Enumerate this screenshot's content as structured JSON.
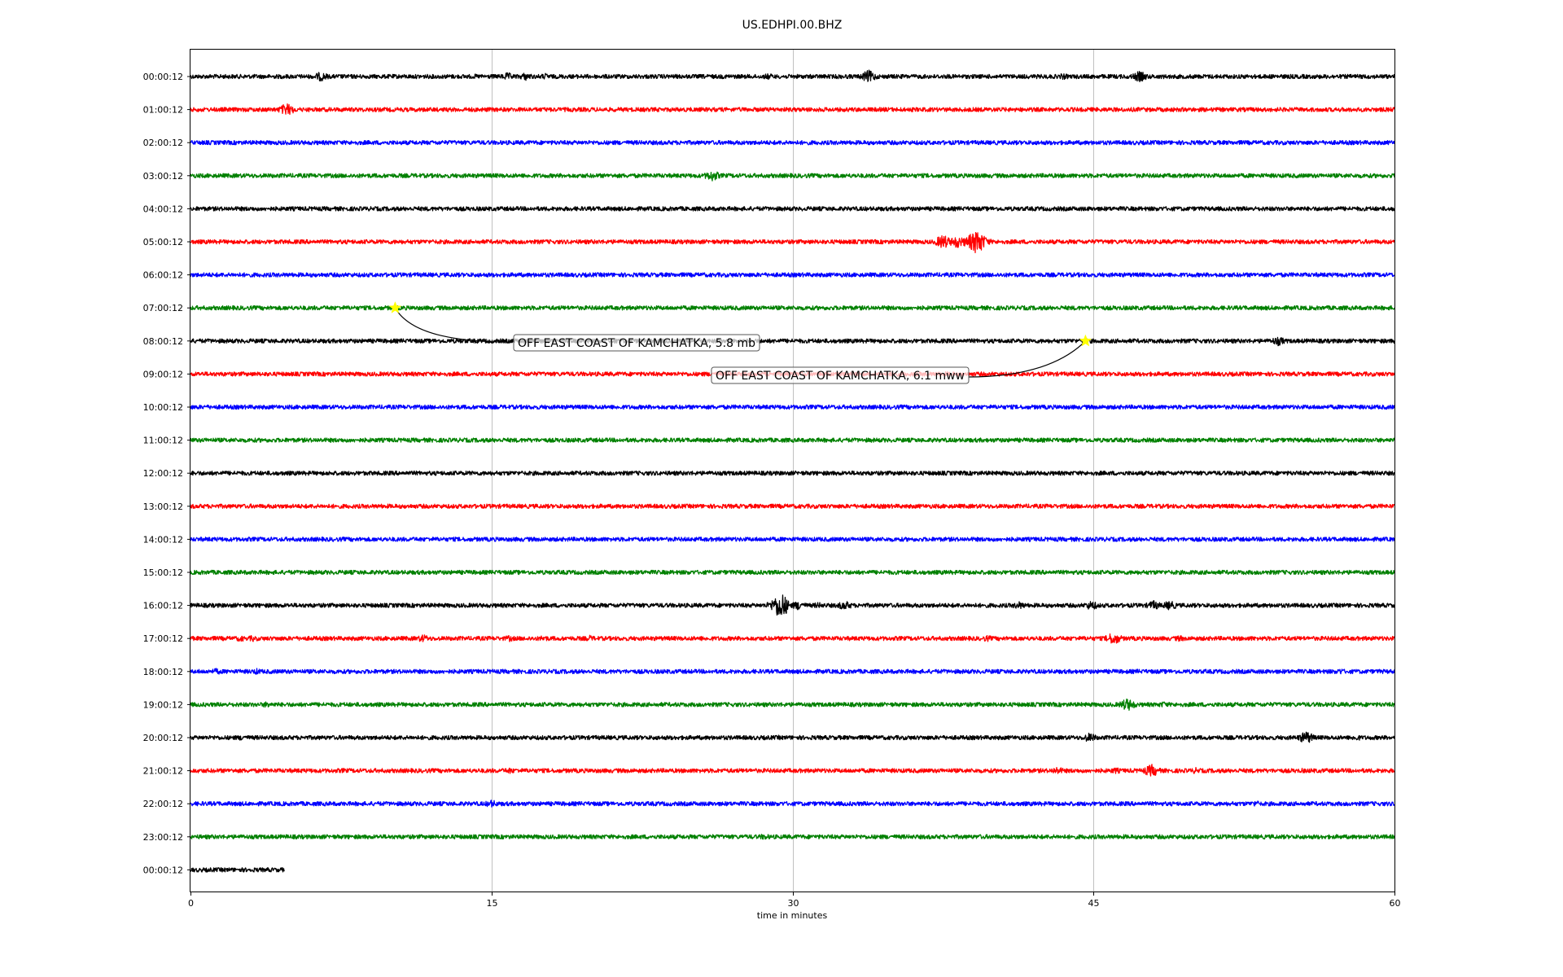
{
  "chart_data": {
    "type": "line",
    "title": "US.EDHPI.00.BHZ",
    "xlabel": "time in minutes",
    "ylabel": "",
    "xlim": [
      0,
      60
    ],
    "x_ticks": [
      0,
      15,
      30,
      45,
      60
    ],
    "grid": "vertical",
    "trace_colors": [
      "#000000",
      "#ff0000",
      "#0000ff",
      "#008000"
    ],
    "rows": [
      {
        "label": "00:00:12",
        "end_minute": 60,
        "bursts": [
          [
            2.7,
            2
          ],
          [
            6.5,
            6
          ],
          [
            14.2,
            3
          ],
          [
            15.8,
            5
          ],
          [
            16.7,
            5
          ],
          [
            17.7,
            4
          ],
          [
            20.8,
            3
          ],
          [
            26.8,
            3
          ],
          [
            28.8,
            4
          ],
          [
            32.3,
            3
          ],
          [
            33.8,
            8
          ],
          [
            37.8,
            3
          ],
          [
            43.5,
            4
          ],
          [
            47.3,
            7
          ],
          [
            53.8,
            2
          ]
        ]
      },
      {
        "label": "01:00:12",
        "end_minute": 60,
        "bursts": [
          [
            4.8,
            8
          ]
        ]
      },
      {
        "label": "02:00:12",
        "end_minute": 60,
        "bursts": [
          [
            54.3,
            2
          ]
        ]
      },
      {
        "label": "03:00:12",
        "end_minute": 60,
        "bursts": [
          [
            12.8,
            2
          ],
          [
            26.0,
            7
          ]
        ]
      },
      {
        "label": "04:00:12",
        "end_minute": 60,
        "bursts": [
          [
            18.1,
            2
          ]
        ]
      },
      {
        "label": "05:00:12",
        "end_minute": 60,
        "bursts": [
          [
            37.5,
            9
          ],
          [
            38.2,
            8
          ],
          [
            38.9,
            10
          ],
          [
            39.2,
            16
          ],
          [
            39.5,
            7
          ]
        ]
      },
      {
        "label": "06:00:12",
        "end_minute": 60,
        "bursts": [
          [
            5.0,
            2
          ]
        ]
      },
      {
        "label": "07:00:12",
        "end_minute": 60,
        "bursts": [
          [
            20.6,
            3
          ],
          [
            57.0,
            3
          ]
        ]
      },
      {
        "label": "08:00:12",
        "end_minute": 60,
        "bursts": [
          [
            54.2,
            6
          ]
        ]
      },
      {
        "label": "09:00:12",
        "end_minute": 60,
        "bursts": []
      },
      {
        "label": "10:00:12",
        "end_minute": 60,
        "bursts": []
      },
      {
        "label": "11:00:12",
        "end_minute": 60,
        "bursts": []
      },
      {
        "label": "12:00:12",
        "end_minute": 60,
        "bursts": []
      },
      {
        "label": "13:00:12",
        "end_minute": 60,
        "bursts": [
          [
            44.9,
            3
          ]
        ]
      },
      {
        "label": "14:00:12",
        "end_minute": 60,
        "bursts": []
      },
      {
        "label": "15:00:12",
        "end_minute": 60,
        "bursts": []
      },
      {
        "label": "16:00:12",
        "end_minute": 60,
        "bursts": [
          [
            29.0,
            6
          ],
          [
            29.4,
            17
          ],
          [
            30.3,
            6
          ],
          [
            31.3,
            4
          ],
          [
            32.6,
            6
          ],
          [
            41.3,
            5
          ],
          [
            44.9,
            6
          ],
          [
            48.0,
            6
          ],
          [
            48.8,
            6
          ]
        ]
      },
      {
        "label": "17:00:12",
        "end_minute": 60,
        "bursts": [
          [
            2.5,
            4
          ],
          [
            3.1,
            4
          ],
          [
            4.4,
            3
          ],
          [
            11.6,
            5
          ],
          [
            15.9,
            4
          ],
          [
            16.9,
            3
          ],
          [
            17.6,
            4
          ],
          [
            19.9,
            4
          ],
          [
            25.5,
            3
          ],
          [
            39.7,
            4
          ],
          [
            44.6,
            3
          ],
          [
            46.0,
            8
          ],
          [
            49.3,
            4
          ],
          [
            52.9,
            3
          ]
        ]
      },
      {
        "label": "18:00:12",
        "end_minute": 60,
        "bursts": [
          [
            1.3,
            4
          ],
          [
            3.3,
            4
          ],
          [
            47.2,
            3
          ],
          [
            57.3,
            4
          ]
        ]
      },
      {
        "label": "19:00:12",
        "end_minute": 60,
        "bursts": [
          [
            3.8,
            4
          ],
          [
            4.3,
            3
          ],
          [
            46.7,
            8
          ],
          [
            48.5,
            4
          ]
        ]
      },
      {
        "label": "20:00:12",
        "end_minute": 60,
        "bursts": [
          [
            2.6,
            4
          ],
          [
            29.3,
            3
          ],
          [
            44.8,
            6
          ],
          [
            55.6,
            8
          ],
          [
            58.1,
            4
          ]
        ]
      },
      {
        "label": "21:00:12",
        "end_minute": 60,
        "bursts": [
          [
            7.6,
            3
          ],
          [
            15.9,
            4
          ],
          [
            43.2,
            5
          ],
          [
            46.1,
            4
          ],
          [
            47.9,
            8
          ],
          [
            50.1,
            4
          ],
          [
            55.4,
            3
          ]
        ]
      },
      {
        "label": "22:00:12",
        "end_minute": 60,
        "bursts": [
          [
            15.0,
            5
          ],
          [
            28.3,
            3
          ],
          [
            53.1,
            4
          ]
        ]
      },
      {
        "label": "23:00:12",
        "end_minute": 60,
        "bursts": [
          [
            28.6,
            4
          ],
          [
            39.4,
            3
          ]
        ]
      },
      {
        "label": "00:00:12",
        "end_minute": 4.7,
        "bursts": []
      }
    ],
    "events": [
      {
        "label": "OFF EAST COAST OF KAMCHATKA, 5.8 mb",
        "row": 7,
        "minute": 10.2
      },
      {
        "label": "OFF EAST COAST OF KAMCHATKA, 6.1 mww",
        "row": 8,
        "minute": 44.6
      }
    ]
  }
}
